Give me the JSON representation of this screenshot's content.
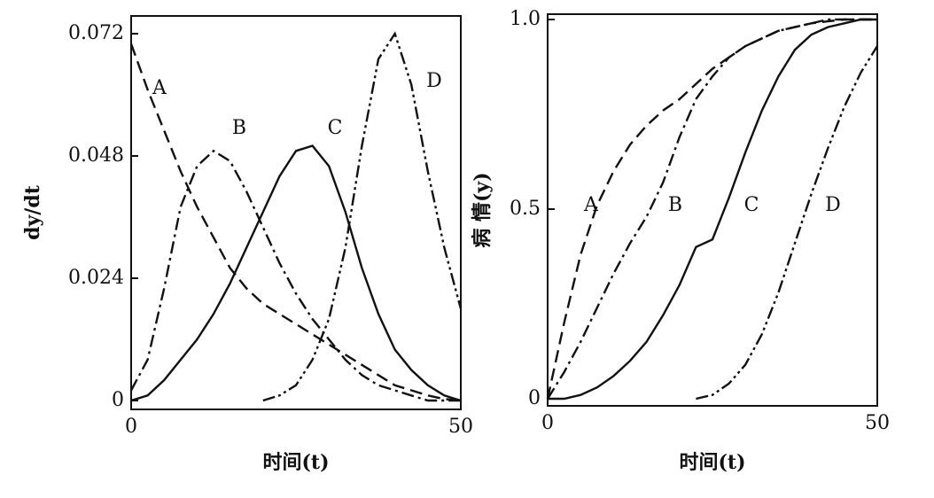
{
  "chart_data": [
    {
      "type": "line",
      "ylabel": "dy/dt",
      "xlabel": "时间(t)",
      "x": [
        0,
        2.5,
        5,
        7.5,
        10,
        12.5,
        15,
        17.5,
        20,
        22.5,
        25,
        27.5,
        30,
        32.5,
        35,
        37.5,
        40,
        42.5,
        45,
        47.5,
        50
      ],
      "xlim": [
        0,
        50
      ],
      "xticks": [
        0,
        50
      ],
      "ylim": [
        0,
        0.072
      ],
      "yticks": [
        0,
        0.024,
        0.048,
        0.072
      ],
      "series": [
        {
          "name": "A",
          "color": "#111111",
          "linestyle": "dashed",
          "values": [
            0.07,
            0.061,
            0.053,
            0.045,
            0.038,
            0.032,
            0.026,
            0.022,
            0.019,
            0.017,
            0.015,
            0.013,
            0.011,
            0.009,
            0.007,
            0.005,
            0.003,
            0.002,
            0.001,
            0.0003,
            0
          ]
        },
        {
          "name": "B",
          "color": "#111111",
          "linestyle": "dashdot",
          "values": [
            0.002,
            0.008,
            0.022,
            0.038,
            0.046,
            0.049,
            0.047,
            0.041,
            0.034,
            0.027,
            0.021,
            0.016,
            0.012,
            0.008,
            0.005,
            0.003,
            0.002,
            0.001,
            0,
            0,
            0
          ]
        },
        {
          "name": "C",
          "color": "#111111",
          "linestyle": "solid",
          "values": [
            0,
            0.001,
            0.004,
            0.008,
            0.012,
            0.017,
            0.023,
            0.03,
            0.037,
            0.044,
            0.049,
            0.05,
            0.046,
            0.037,
            0.026,
            0.017,
            0.01,
            0.006,
            0.003,
            0.001,
            0
          ]
        },
        {
          "name": "D",
          "color": "#111111",
          "linestyle": "dashdotdot",
          "values": [
            null,
            null,
            null,
            null,
            null,
            null,
            null,
            null,
            0,
            0.001,
            0.003,
            0.008,
            0.016,
            0.03,
            0.05,
            0.067,
            0.072,
            0.062,
            0.045,
            0.03,
            0.018
          ]
        }
      ]
    },
    {
      "type": "line",
      "ylabel": "病 情(y)",
      "xlabel": "时间(t)",
      "x": [
        0,
        2.5,
        5,
        7.5,
        10,
        12.5,
        15,
        17.5,
        20,
        22.5,
        25,
        27.5,
        30,
        32.5,
        35,
        37.5,
        40,
        42.5,
        45,
        47.5,
        50
      ],
      "xlim": [
        0,
        50
      ],
      "xticks": [
        0,
        50
      ],
      "ylim": [
        0,
        1
      ],
      "yticks": [
        0,
        {
          "value": 0.5,
          "label": "0.5"
        },
        {
          "value": 1,
          "label": "1.0"
        }
      ],
      "series": [
        {
          "name": "A",
          "color": "#111111",
          "linestyle": "dashed",
          "values": [
            0,
            0.2,
            0.38,
            0.51,
            0.6,
            0.67,
            0.72,
            0.76,
            0.79,
            0.83,
            0.87,
            0.9,
            0.93,
            0.95,
            0.97,
            0.98,
            0.99,
            0.995,
            1,
            1,
            1
          ]
        },
        {
          "name": "B",
          "color": "#111111",
          "linestyle": "dashdot",
          "values": [
            0,
            0.07,
            0.15,
            0.24,
            0.33,
            0.41,
            0.48,
            0.57,
            0.69,
            0.79,
            0.85,
            0.9,
            0.93,
            0.95,
            0.97,
            0.98,
            0.99,
            1,
            1,
            1,
            1
          ]
        },
        {
          "name": "C",
          "color": "#111111",
          "linestyle": "solid",
          "values": [
            0,
            0,
            0.01,
            0.03,
            0.06,
            0.1,
            0.15,
            0.22,
            0.3,
            0.4,
            0.42,
            0.53,
            0.65,
            0.76,
            0.85,
            0.92,
            0.96,
            0.98,
            0.99,
            1,
            1
          ]
        },
        {
          "name": "D",
          "color": "#111111",
          "linestyle": "dashdotdot",
          "values": [
            null,
            null,
            null,
            null,
            null,
            null,
            null,
            null,
            null,
            0,
            0.01,
            0.04,
            0.09,
            0.17,
            0.28,
            0.41,
            0.54,
            0.66,
            0.77,
            0.86,
            0.93
          ]
        }
      ]
    }
  ]
}
